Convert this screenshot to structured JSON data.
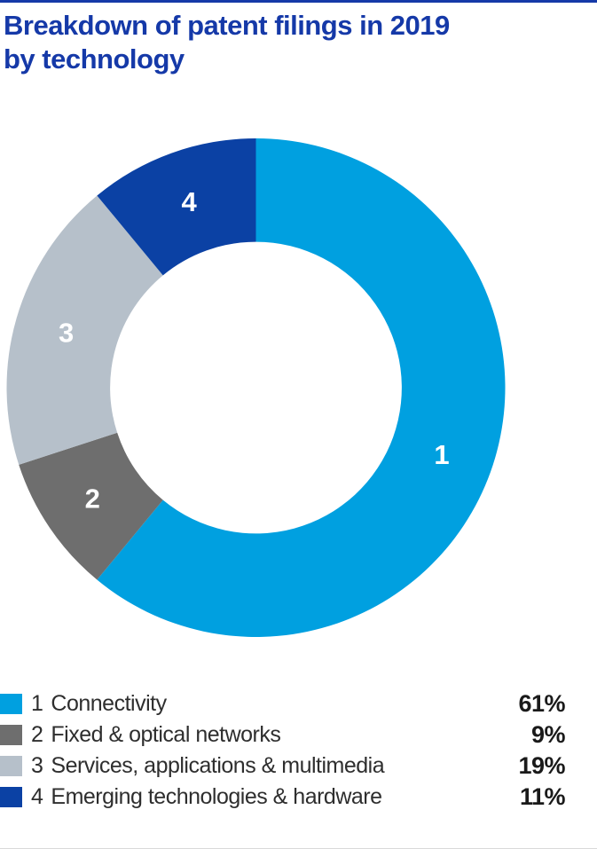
{
  "page": {
    "title_line1": "Breakdown of patent filings in 2019",
    "title_line2": "by technology"
  },
  "colors": {
    "title": "#1539A8",
    "top_rule": "#1539A8",
    "legend_text": "#2E2E2E",
    "percent_text": "#1A1A1A",
    "background": "#FFFFFF",
    "slice_number_text": "#FFFFFF"
  },
  "chart_data": {
    "type": "pie",
    "variant": "donut",
    "title": "Breakdown of patent filings in 2019 by technology",
    "start_angle_deg": 0,
    "direction": "clockwise",
    "inner_radius_ratio": 0.585,
    "legend_position": "bottom",
    "slice_labels": "segment index numbers shown in white inside the ring",
    "segments": [
      {
        "index": "1",
        "label": "Connectivity",
        "value_pct": 61,
        "percent_label": "61%",
        "color": "#00A0E0"
      },
      {
        "index": "2",
        "label": "Fixed & optical networks",
        "value_pct": 9,
        "percent_label": "9%",
        "color": "#6E6E6E"
      },
      {
        "index": "3",
        "label": "Services, applications & multimedia",
        "value_pct": 19,
        "percent_label": "19%",
        "color": "#B6C0CA"
      },
      {
        "index": "4",
        "label": "Emerging technologies & hardware",
        "value_pct": 11,
        "percent_label": "11%",
        "color": "#0B41A4"
      }
    ]
  }
}
